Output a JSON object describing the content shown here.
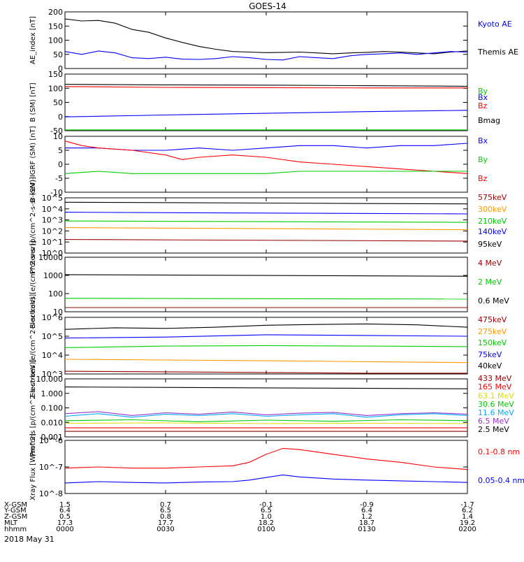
{
  "page": {
    "title": "GOES-14",
    "date": "2018 May 31"
  },
  "colors": {
    "black": "#000000",
    "blue": "#0000ff",
    "red": "#ff0000",
    "green": "#00cc00",
    "orange": "#ff9900",
    "darkred": "#990000",
    "cyan": "#00aaff",
    "purple": "#9933cc",
    "yellow": "#dddd00",
    "darkgreen": "#007700"
  },
  "footer": {
    "row_labels": [
      "X-GSM",
      "Y-GSM",
      "Z-GSM",
      "MLT",
      "hhmm"
    ],
    "columns": [
      {
        "values": [
          "1.5",
          "6.4",
          "0.5",
          "17.3",
          "0000"
        ]
      },
      {
        "values": [
          "0.7",
          "6.5",
          "0.8",
          "17.7",
          "0030"
        ]
      },
      {
        "values": [
          "-0.1",
          "6.5",
          "1.0",
          "18.2",
          "0100"
        ]
      },
      {
        "values": [
          "-0.9",
          "6.4",
          "1.2",
          "18.7",
          "0130"
        ]
      },
      {
        "values": [
          "-1.7",
          "6.2",
          "1.4",
          "19.2",
          "0200"
        ]
      }
    ]
  },
  "chart_data": [
    {
      "type": "line",
      "ylabel": "AE_index [nT]",
      "ylim": [
        0,
        200
      ],
      "ytick_labels": [
        "0",
        "50",
        "100",
        "150",
        "200"
      ],
      "legend": [
        {
          "name": "Kyoto AE",
          "color": "blue"
        },
        {
          "name": "Themis AE",
          "color": "black"
        }
      ],
      "series": [
        {
          "name": "Themis AE",
          "color": "black",
          "x": [
            0,
            5,
            10,
            15,
            20,
            25,
            30,
            35,
            40,
            45,
            50,
            55,
            60,
            65,
            70,
            75,
            80,
            85,
            90,
            95,
            100,
            105,
            110,
            115,
            120
          ],
          "y": [
            175,
            168,
            170,
            160,
            138,
            128,
            108,
            92,
            78,
            68,
            60,
            58,
            56,
            57,
            58,
            55,
            52,
            55,
            57,
            60,
            58,
            55,
            52,
            58,
            62
          ]
        },
        {
          "name": "Kyoto AE",
          "color": "blue",
          "x": [
            0,
            5,
            10,
            15,
            20,
            25,
            30,
            35,
            40,
            45,
            50,
            55,
            60,
            65,
            70,
            75,
            80,
            85,
            90,
            95,
            100,
            105,
            110,
            115,
            120
          ],
          "y": [
            60,
            50,
            62,
            55,
            38,
            35,
            40,
            33,
            32,
            35,
            42,
            38,
            32,
            30,
            42,
            38,
            35,
            45,
            50,
            52,
            55,
            50,
            55,
            60,
            58
          ]
        }
      ]
    },
    {
      "type": "line",
      "ylabel": "B (SM) [nT]",
      "ylim": [
        -55,
        150
      ],
      "ytick_labels": [
        "-50",
        "0",
        "50",
        "100",
        "150"
      ],
      "legend": [
        {
          "name": "Bx",
          "color": "blue"
        },
        {
          "name": "By",
          "color": "green"
        },
        {
          "name": "Bz",
          "color": "red"
        },
        {
          "name": "Bmag",
          "color": "black"
        }
      ],
      "series": [
        {
          "name": "Bmag",
          "color": "black",
          "x": [
            0,
            30,
            60,
            90,
            120
          ],
          "y": [
            113,
            111,
            110,
            108,
            106
          ]
        },
        {
          "name": "Bz",
          "color": "red",
          "x": [
            0,
            30,
            60,
            90,
            120
          ],
          "y": [
            105,
            102,
            101,
            100,
            100
          ]
        },
        {
          "name": "Bx",
          "color": "blue",
          "x": [
            0,
            30,
            60,
            90,
            120
          ],
          "y": [
            -5,
            2,
            8,
            14,
            19
          ]
        },
        {
          "name": "By",
          "color": "green",
          "x": [
            0,
            30,
            60,
            90,
            120
          ],
          "y": [
            -52,
            -52,
            -52,
            -52,
            -52
          ]
        }
      ]
    },
    {
      "type": "line",
      "ylabel": "B (SM)-IGRF (SM) [nT]",
      "ylim": [
        -12,
        12
      ],
      "ytick_labels": [
        "-10",
        "-5",
        "0",
        "5",
        "10"
      ],
      "legend": [
        {
          "name": "Bx",
          "color": "blue"
        },
        {
          "name": "By",
          "color": "green"
        },
        {
          "name": "Bz",
          "color": "red"
        }
      ],
      "series": [
        {
          "name": "Bx",
          "color": "blue",
          "x": [
            0,
            10,
            20,
            30,
            40,
            50,
            60,
            70,
            80,
            90,
            100,
            110,
            120
          ],
          "y": [
            7,
            7,
            6,
            6,
            7,
            6,
            7,
            8,
            8,
            7,
            8,
            8,
            9
          ]
        },
        {
          "name": "Bz",
          "color": "red",
          "x": [
            0,
            5,
            10,
            20,
            30,
            35,
            40,
            50,
            60,
            70,
            80,
            90,
            100,
            110,
            120
          ],
          "y": [
            10,
            8,
            7,
            6,
            4,
            2,
            3,
            4,
            3,
            1,
            0,
            -1,
            -2,
            -3,
            -4
          ]
        },
        {
          "name": "By",
          "color": "green",
          "x": [
            0,
            10,
            20,
            30,
            40,
            50,
            60,
            70,
            80,
            90,
            100,
            110,
            120
          ],
          "y": [
            -4,
            -3,
            -4,
            -4,
            -4,
            -4,
            -4,
            -3,
            -3,
            -3,
            -3,
            -3,
            -3
          ]
        }
      ]
    },
    {
      "type": "line",
      "ylabel": "Protons [p/(cm^2-s-sr-keV)]",
      "yscale": "log",
      "ylim": [
        1,
        100000
      ],
      "ytick_labels": [
        "10^0",
        "10^1",
        "10^2",
        "10^3",
        "10^4",
        "10^5"
      ],
      "legend": [
        {
          "name": "575keV",
          "color": "darkred"
        },
        {
          "name": "300keV",
          "color": "orange"
        },
        {
          "name": "210keV",
          "color": "green"
        },
        {
          "name": "140keV",
          "color": "blue"
        },
        {
          "name": "95keV",
          "color": "black"
        }
      ],
      "series": [
        {
          "name": "95keV",
          "color": "black",
          "x": [
            0,
            120
          ],
          "y": [
            40000,
            28000
          ]
        },
        {
          "name": "140keV",
          "color": "blue",
          "x": [
            0,
            120
          ],
          "y": [
            5000,
            3500
          ]
        },
        {
          "name": "210keV",
          "color": "green",
          "x": [
            0,
            120
          ],
          "y": [
            800,
            600
          ]
        },
        {
          "name": "300keV",
          "color": "orange",
          "x": [
            0,
            120
          ],
          "y": [
            200,
            130
          ]
        },
        {
          "name": "575keV",
          "color": "darkred",
          "x": [
            0,
            120
          ],
          "y": [
            17,
            12
          ]
        }
      ]
    },
    {
      "type": "line",
      "ylabel": "Electrons [e/(cm^2-s-sr)]",
      "yscale": "log",
      "ylim": [
        10,
        10000
      ],
      "ytick_labels": [
        "10",
        "100",
        "1000",
        "10000"
      ],
      "legend": [
        {
          "name": "4 MeV",
          "color": "darkred"
        },
        {
          "name": "2 MeV",
          "color": "green"
        },
        {
          "name": "0.6 MeV",
          "color": "black"
        }
      ],
      "series": [
        {
          "name": "0.6 MeV",
          "color": "black",
          "x": [
            0,
            120
          ],
          "y": [
            1100,
            900
          ]
        },
        {
          "name": "2 MeV",
          "color": "green",
          "x": [
            0,
            120
          ],
          "y": [
            55,
            50
          ]
        },
        {
          "name": "4 MeV",
          "color": "darkred",
          "x": [
            0,
            120
          ],
          "y": [
            17,
            17
          ]
        }
      ]
    },
    {
      "type": "line",
      "ylabel": "Electrons [e/(cm^2-s-sr-keV)]",
      "yscale": "log",
      "ylim": [
        1000,
        1000000
      ],
      "ytick_labels": [
        "10^3",
        "10^4",
        "10^5",
        "10^6"
      ],
      "legend": [
        {
          "name": "475keV",
          "color": "darkred"
        },
        {
          "name": "275keV",
          "color": "orange"
        },
        {
          "name": "150keV",
          "color": "green"
        },
        {
          "name": "75keV",
          "color": "blue"
        },
        {
          "name": "40keV",
          "color": "black"
        }
      ],
      "series": [
        {
          "name": "40keV",
          "color": "black",
          "x": [
            0,
            15,
            30,
            45,
            60,
            75,
            90,
            105,
            120
          ],
          "y": [
            230000,
            280000,
            260000,
            300000,
            380000,
            420000,
            450000,
            400000,
            300000
          ]
        },
        {
          "name": "75keV",
          "color": "blue",
          "x": [
            0,
            30,
            60,
            90,
            120
          ],
          "y": [
            80000,
            90000,
            120000,
            110000,
            100000
          ]
        },
        {
          "name": "150keV",
          "color": "green",
          "x": [
            0,
            30,
            60,
            90,
            120
          ],
          "y": [
            25000,
            30000,
            32000,
            30000,
            28000
          ]
        },
        {
          "name": "275keV",
          "color": "orange",
          "x": [
            0,
            30,
            60,
            90,
            120
          ],
          "y": [
            6000,
            5500,
            5000,
            4500,
            4000
          ]
        },
        {
          "name": "475keV",
          "color": "darkred",
          "x": [
            0,
            30,
            60,
            90,
            120
          ],
          "y": [
            1400,
            1300,
            1200,
            1100,
            1100
          ]
        }
      ]
    },
    {
      "type": "line",
      "ylabel": "Protons [p/(cm^2-s-sr-keV)]",
      "yscale": "log",
      "ylim": [
        0.001,
        100
      ],
      "ytick_labels": [
        "0.001",
        "0.010",
        "0.100",
        "1.000",
        "10.000"
      ],
      "legend": [
        {
          "name": "433 MeV",
          "color": "darkred"
        },
        {
          "name": "165 MeV",
          "color": "red"
        },
        {
          "name": "63.1 MeV",
          "color": "yellow"
        },
        {
          "name": "30.6 MeV",
          "color": "green"
        },
        {
          "name": "11.6 MeV",
          "color": "cyan"
        },
        {
          "name": "6.5 MeV",
          "color": "purple"
        },
        {
          "name": "2.5 MeV",
          "color": "black"
        }
      ],
      "series": [
        {
          "name": "2.5 MeV",
          "color": "black",
          "x": [
            0,
            120
          ],
          "y": [
            20,
            14
          ]
        },
        {
          "name": "6.5 MeV",
          "color": "purple",
          "x": [
            0,
            10,
            20,
            30,
            40,
            50,
            60,
            70,
            80,
            90,
            100,
            110,
            120
          ],
          "y": [
            0.1,
            0.15,
            0.07,
            0.12,
            0.09,
            0.14,
            0.08,
            0.11,
            0.13,
            0.07,
            0.1,
            0.12,
            0.09
          ]
        },
        {
          "name": "11.6 MeV",
          "color": "cyan",
          "x": [
            0,
            10,
            20,
            30,
            40,
            50,
            60,
            70,
            80,
            90,
            100,
            110,
            120
          ],
          "y": [
            0.06,
            0.1,
            0.05,
            0.09,
            0.07,
            0.1,
            0.06,
            0.08,
            0.1,
            0.05,
            0.08,
            0.1,
            0.07
          ]
        },
        {
          "name": "30.6 MeV",
          "color": "green",
          "x": [
            0,
            20,
            40,
            60,
            80,
            100,
            120
          ],
          "y": [
            0.025,
            0.03,
            0.02,
            0.028,
            0.022,
            0.03,
            0.025
          ]
        },
        {
          "name": "63.1 MeV",
          "color": "yellow",
          "x": [
            0,
            30,
            60,
            90,
            120
          ],
          "y": [
            0.015,
            0.016,
            0.014,
            0.015,
            0.014
          ]
        },
        {
          "name": "165 MeV",
          "color": "red",
          "x": [
            0,
            30,
            60,
            90,
            120
          ],
          "y": [
            0.006,
            0.006,
            0.006,
            0.006,
            0.006
          ]
        },
        {
          "name": "433 MeV",
          "color": "darkred",
          "x": [
            0,
            30,
            60,
            90,
            120
          ],
          "y": [
            0.003,
            0.003,
            0.003,
            0.003,
            0.003
          ]
        }
      ]
    },
    {
      "type": "line",
      "ylabel": "Xray Flux [W/m^2]",
      "yscale": "log",
      "ylim": [
        1e-08,
        1e-06
      ],
      "ytick_labels": [
        "10^-8",
        "10^-7",
        "10^-6"
      ],
      "legend": [
        {
          "name": "0.1-0.8 nm",
          "color": "red"
        },
        {
          "name": "0.05-0.4 nm",
          "color": "blue"
        }
      ],
      "series": [
        {
          "name": "0.1-0.8 nm",
          "color": "red",
          "x": [
            0,
            10,
            20,
            30,
            40,
            50,
            55,
            60,
            65,
            70,
            80,
            90,
            100,
            110,
            120
          ],
          "y": [
            9e-08,
            1e-07,
            9e-08,
            9e-08,
            1e-07,
            1.1e-07,
            1.5e-07,
            3e-07,
            5e-07,
            4.5e-07,
            3e-07,
            2e-07,
            1.5e-07,
            1e-07,
            8e-08
          ]
        },
        {
          "name": "0.05-0.4 nm",
          "color": "blue",
          "x": [
            0,
            10,
            20,
            30,
            40,
            50,
            55,
            60,
            65,
            70,
            80,
            90,
            100,
            110,
            120
          ],
          "y": [
            2.5e-08,
            2.8e-08,
            2.6e-08,
            2.5e-08,
            2.7e-08,
            2.8e-08,
            3.2e-08,
            4e-08,
            5e-08,
            4.2e-08,
            3.5e-08,
            3.2e-08,
            3e-08,
            2.8e-08,
            2.6e-08
          ]
        }
      ]
    }
  ]
}
